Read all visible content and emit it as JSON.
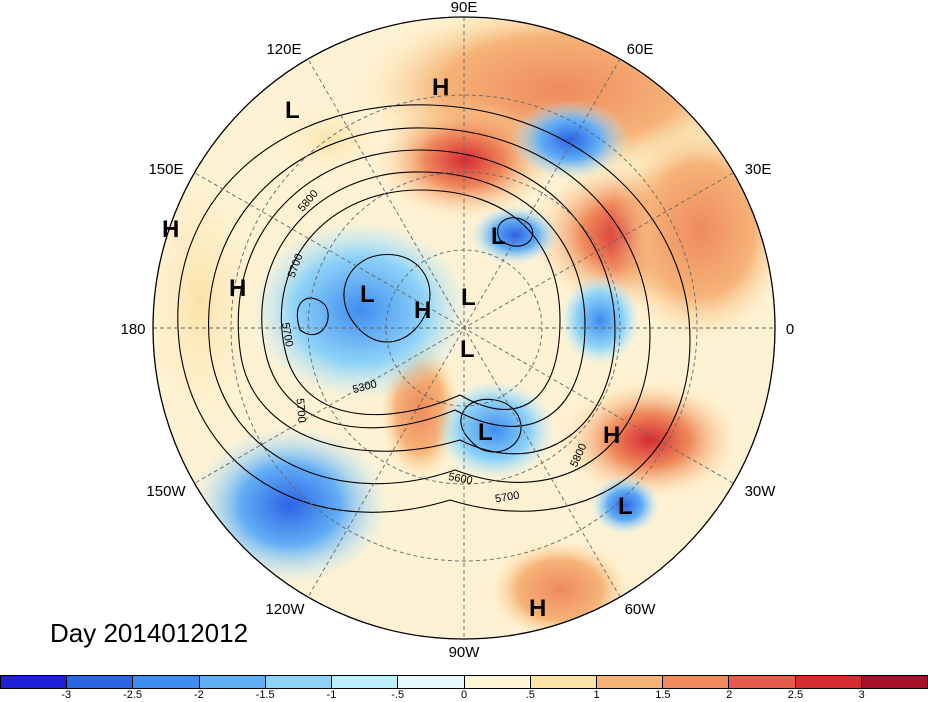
{
  "map": {
    "projection": "north-polar-stereographic",
    "longitude_labels": [
      "90E",
      "60E",
      "30E",
      "0",
      "30W",
      "60W",
      "90W",
      "120W",
      "150W",
      "180",
      "150E",
      "120E"
    ],
    "pressure_centers": [
      {
        "type": "H",
        "region": "Siberia"
      },
      {
        "type": "L",
        "region": "Sea of Okhotsk"
      },
      {
        "type": "H",
        "region": "North Pacific west"
      },
      {
        "type": "H",
        "region": "North Pacific"
      },
      {
        "type": "L",
        "region": "Kara Sea"
      },
      {
        "type": "L",
        "region": "Bering Sea"
      },
      {
        "type": "H",
        "region": "Beaufort Sea"
      },
      {
        "type": "L",
        "region": "Arctic Ocean"
      },
      {
        "type": "L",
        "region": "Canadian Archipelago"
      },
      {
        "type": "L",
        "region": "Hudson Bay"
      },
      {
        "type": "H",
        "region": "Azores"
      },
      {
        "type": "L",
        "region": "Central Atlantic"
      },
      {
        "type": "H",
        "region": "South America"
      }
    ],
    "contour_labels": [
      "5800",
      "5700",
      "5700",
      "5300",
      "5700",
      "5600",
      "5700",
      "5800"
    ]
  },
  "title": "Day 2014012012",
  "colorbar": {
    "colors": [
      "#1f1fd6",
      "#2c64e6",
      "#3f8df0",
      "#62aef5",
      "#8fd3f8",
      "#bdeefb",
      "#e4f8fd",
      "#fff6d6",
      "#fbe2a6",
      "#f6b378",
      "#ef8a5c",
      "#e85a4a",
      "#d62b33",
      "#a8102a"
    ],
    "tick_labels": [
      "-3",
      "-2.5",
      "-2",
      "-1.5",
      "-1",
      "-.5",
      "0",
      ".5",
      "1",
      "1.5",
      "2",
      "2.5",
      "3"
    ]
  }
}
